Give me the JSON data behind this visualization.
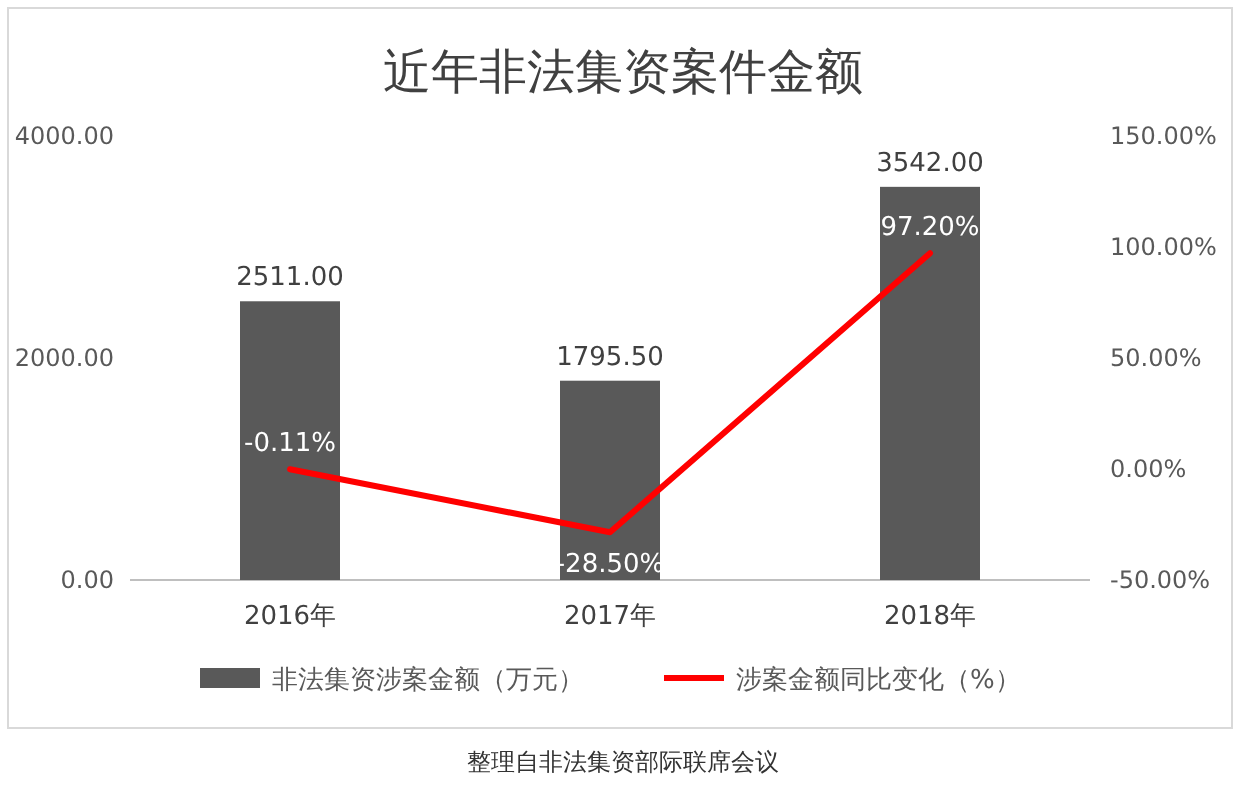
{
  "chart_data": {
    "type": "bar",
    "title": "近年非法集资案件金额",
    "categories": [
      "2016年",
      "2017年",
      "2018年"
    ],
    "series": [
      {
        "name": "非法集资涉案金额（万元）",
        "color": "#595959",
        "values": [
          2511,
          1795.5,
          3542
        ],
        "value_labels": [
          "2511.00",
          "1795.50",
          "3542.00"
        ]
      },
      {
        "name": "涉案金额同比变化（%）",
        "type": "line",
        "axis": "y2",
        "color": "#ff0000",
        "values": [
          -0.11,
          -28.5,
          97.2
        ],
        "value_labels": [
          "-0.11%",
          "-28.50%",
          "97.20%"
        ]
      }
    ],
    "ylim": [
      0,
      4000
    ],
    "yticks": [
      {
        "value": 0,
        "label": "0.00"
      },
      {
        "value": 2000,
        "label": "2000.00"
      },
      {
        "value": 4000,
        "label": "4000.00"
      }
    ],
    "y2lim": [
      -50,
      150
    ],
    "y2ticks": [
      {
        "value": -50,
        "label": "-50.00%"
      },
      {
        "value": 0,
        "label": "0.00%"
      },
      {
        "value": 50,
        "label": "50.00%"
      },
      {
        "value": 100,
        "label": "100.00%"
      },
      {
        "value": 150,
        "label": "150.00%"
      }
    ],
    "legend": "bottom",
    "annotations": [
      "整理自非法集资部际联席会议"
    ]
  }
}
